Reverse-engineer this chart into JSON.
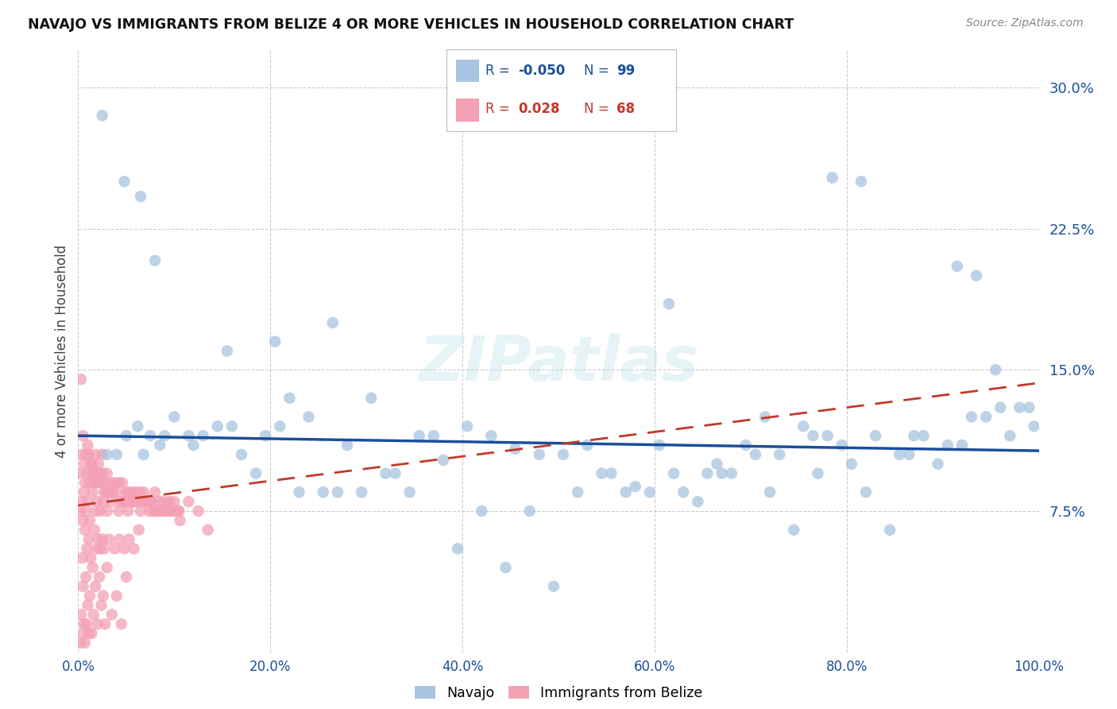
{
  "title": "NAVAJO VS IMMIGRANTS FROM BELIZE 4 OR MORE VEHICLES IN HOUSEHOLD CORRELATION CHART",
  "source": "Source: ZipAtlas.com",
  "ylabel": "4 or more Vehicles in Household",
  "x_tick_labels": [
    "0.0%",
    "20.0%",
    "40.0%",
    "60.0%",
    "80.0%",
    "100.0%"
  ],
  "x_tick_positions": [
    0.0,
    20.0,
    40.0,
    60.0,
    80.0,
    100.0
  ],
  "y_tick_labels": [
    "7.5%",
    "15.0%",
    "22.5%",
    "30.0%"
  ],
  "y_tick_positions": [
    7.5,
    15.0,
    22.5,
    30.0
  ],
  "xlim": [
    0.0,
    100.0
  ],
  "ylim": [
    0.0,
    32.0
  ],
  "navajo_R": -0.05,
  "navajo_N": 99,
  "belize_R": 0.028,
  "belize_N": 68,
  "navajo_color": "#a8c4e0",
  "navajo_line_color": "#1a4f9c",
  "belize_color": "#f4a0b5",
  "belize_line_color": "#c0392b",
  "watermark": "ZIPatlas",
  "background_color": "#ffffff",
  "navajo_x": [
    5.0,
    6.2,
    6.8,
    8.5,
    10.0,
    12.0,
    14.5,
    17.0,
    19.5,
    22.0,
    24.0,
    26.5,
    28.0,
    30.5,
    33.0,
    35.5,
    38.0,
    40.5,
    43.0,
    45.5,
    48.0,
    50.5,
    53.0,
    55.5,
    58.0,
    60.5,
    63.0,
    65.5,
    68.0,
    70.5,
    73.0,
    75.5,
    78.0,
    80.5,
    83.0,
    85.5,
    88.0,
    90.5,
    93.0,
    95.5,
    98.0,
    3.0,
    4.0,
    7.5,
    9.0,
    11.5,
    13.0,
    16.0,
    18.5,
    21.0,
    23.0,
    25.5,
    27.0,
    29.5,
    32.0,
    34.5,
    37.0,
    39.5,
    42.0,
    44.5,
    47.0,
    49.5,
    52.0,
    54.5,
    57.0,
    59.5,
    62.0,
    64.5,
    67.0,
    69.5,
    72.0,
    74.5,
    77.0,
    79.5,
    82.0,
    84.5,
    87.0,
    89.5,
    92.0,
    94.5,
    97.0,
    2.5,
    4.8,
    6.5,
    8.0,
    15.5,
    20.5,
    78.5,
    81.5,
    91.5,
    93.5,
    96.0,
    99.0,
    61.5,
    66.5,
    71.5,
    76.5,
    86.5,
    99.5
  ],
  "navajo_y": [
    11.5,
    12.0,
    10.5,
    11.0,
    12.5,
    11.0,
    12.0,
    10.5,
    11.5,
    13.5,
    12.5,
    17.5,
    11.0,
    13.5,
    9.5,
    11.5,
    10.2,
    12.0,
    11.5,
    10.8,
    10.5,
    10.5,
    11.0,
    9.5,
    8.8,
    11.0,
    8.5,
    9.5,
    9.5,
    10.5,
    10.5,
    12.0,
    11.5,
    10.0,
    11.5,
    10.5,
    11.5,
    11.0,
    12.5,
    15.0,
    13.0,
    10.5,
    10.5,
    11.5,
    11.5,
    11.5,
    11.5,
    12.0,
    9.5,
    12.0,
    8.5,
    8.5,
    8.5,
    8.5,
    9.5,
    8.5,
    11.5,
    5.5,
    7.5,
    4.5,
    7.5,
    3.5,
    8.5,
    9.5,
    8.5,
    8.5,
    9.5,
    8.0,
    9.5,
    11.0,
    8.5,
    6.5,
    9.5,
    11.0,
    8.5,
    6.5,
    11.5,
    10.0,
    11.0,
    12.5,
    11.5,
    28.5,
    25.0,
    24.2,
    20.8,
    16.0,
    16.5,
    25.2,
    25.0,
    20.5,
    20.0,
    13.0,
    13.0,
    18.5,
    10.0,
    12.5,
    11.5,
    10.5,
    12.0
  ],
  "belize_x": [
    0.2,
    0.4,
    0.5,
    0.6,
    0.7,
    0.8,
    0.9,
    1.0,
    1.1,
    1.2,
    1.3,
    1.4,
    1.5,
    1.6,
    1.7,
    1.8,
    1.9,
    2.0,
    2.1,
    2.2,
    2.3,
    2.4,
    2.5,
    2.6,
    2.7,
    2.8,
    2.9,
    3.0,
    3.2,
    3.4,
    3.6,
    3.8,
    4.0,
    4.2,
    4.4,
    4.6,
    4.8,
    5.0,
    5.2,
    5.4,
    5.6,
    5.8,
    6.0,
    6.2,
    6.4,
    6.6,
    6.8,
    7.0,
    7.2,
    7.4,
    7.6,
    7.8,
    8.0,
    8.2,
    8.4,
    8.6,
    8.8,
    9.0,
    9.2,
    9.4,
    9.6,
    9.8,
    10.0,
    10.2,
    10.4,
    10.6,
    0.3,
    13.5
  ],
  "belize_y": [
    9.5,
    10.5,
    11.5,
    10.0,
    9.0,
    10.5,
    9.5,
    11.0,
    10.5,
    9.0,
    10.0,
    9.5,
    10.0,
    9.5,
    9.0,
    10.5,
    9.0,
    9.5,
    10.0,
    9.0,
    9.5,
    9.0,
    10.5,
    9.5,
    8.5,
    9.0,
    8.5,
    9.5,
    8.5,
    9.0,
    8.5,
    9.0,
    8.5,
    9.0,
    8.0,
    9.0,
    8.0,
    8.5,
    8.5,
    8.0,
    8.5,
    8.0,
    8.5,
    8.0,
    8.5,
    8.0,
    8.5,
    8.0,
    8.0,
    7.5,
    8.0,
    7.5,
    8.5,
    7.5,
    8.0,
    7.5,
    8.0,
    7.5,
    7.5,
    8.0,
    7.5,
    7.5,
    8.0,
    7.5,
    7.5,
    7.0,
    14.5,
    6.5
  ],
  "belize_extra_x": [
    0.3,
    0.5,
    0.6,
    0.8,
    1.0,
    1.2,
    1.4,
    1.5,
    1.6,
    1.8,
    2.0,
    2.2,
    2.4,
    2.6,
    2.8,
    3.0,
    3.5,
    4.0,
    4.5,
    5.0,
    0.4,
    0.7,
    0.9,
    1.1,
    1.3,
    1.7,
    1.9,
    2.1,
    2.3,
    2.5,
    2.7,
    3.2,
    3.8,
    4.3,
    4.8,
    5.3,
    5.8,
    6.3,
    0.2,
    0.4,
    0.5,
    0.6,
    0.8,
    1.0,
    1.2,
    1.5,
    1.8,
    2.0,
    2.3,
    2.6,
    3.0,
    3.5,
    4.2,
    4.7,
    5.2,
    5.7,
    6.5,
    7.5,
    8.5,
    9.5,
    10.5,
    11.5,
    12.5,
    0.3,
    0.5,
    0.7,
    0.9,
    1.1
  ],
  "belize_extra_y": [
    2.0,
    3.5,
    1.5,
    4.0,
    2.5,
    3.0,
    1.0,
    4.5,
    2.0,
    3.5,
    1.5,
    4.0,
    2.5,
    3.0,
    1.5,
    4.5,
    2.0,
    3.0,
    1.5,
    4.0,
    5.0,
    6.5,
    5.5,
    6.0,
    5.0,
    6.5,
    5.5,
    6.0,
    5.5,
    6.0,
    5.5,
    6.0,
    5.5,
    6.0,
    5.5,
    6.0,
    5.5,
    6.5,
    7.5,
    8.0,
    7.0,
    8.5,
    7.5,
    8.0,
    7.0,
    8.5,
    7.5,
    8.0,
    7.5,
    8.0,
    7.5,
    8.0,
    7.5,
    8.0,
    7.5,
    8.0,
    7.5,
    8.0,
    7.5,
    8.0,
    7.5,
    8.0,
    7.5,
    0.5,
    1.0,
    0.5,
    1.5,
    1.0
  ]
}
